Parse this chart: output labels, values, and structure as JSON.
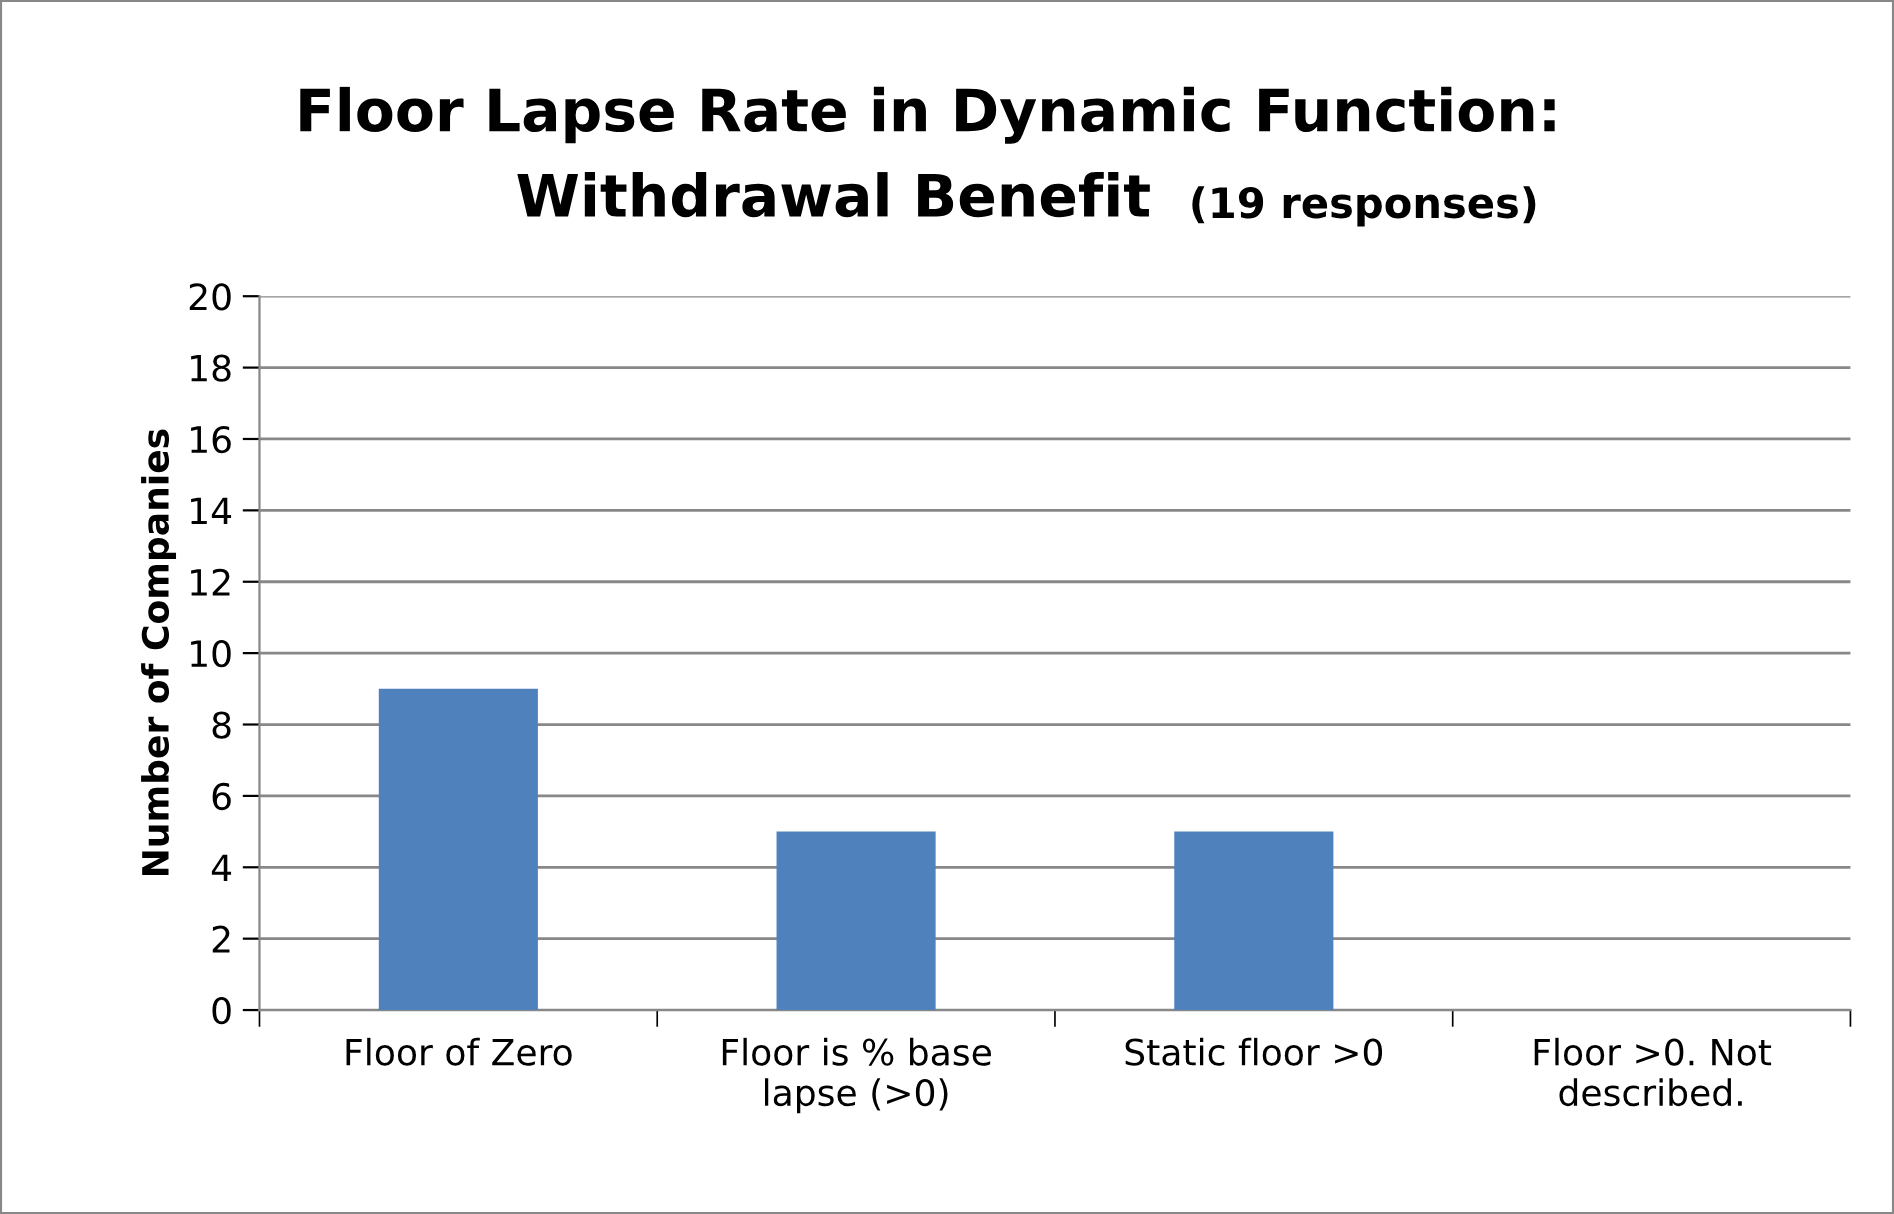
{
  "chart_data": {
    "type": "bar",
    "title": "Floor Lapse Rate in Dynamic Function:\nWithdrawal Benefit",
    "subtitle": "(19 responses)",
    "ylabel": "Number of Companies",
    "categories": [
      "Floor of Zero",
      "Floor is % base\nlapse (>0)",
      "Static floor >0",
      "Floor >0. Not\ndescribed."
    ],
    "values": [
      9,
      5,
      5,
      0
    ],
    "color": "#4f81bd",
    "ylim": [
      0,
      20
    ],
    "yticks": [
      0,
      2,
      4,
      6,
      8,
      10,
      12,
      14,
      16,
      18,
      20
    ],
    "grid": "y",
    "legend": false
  }
}
